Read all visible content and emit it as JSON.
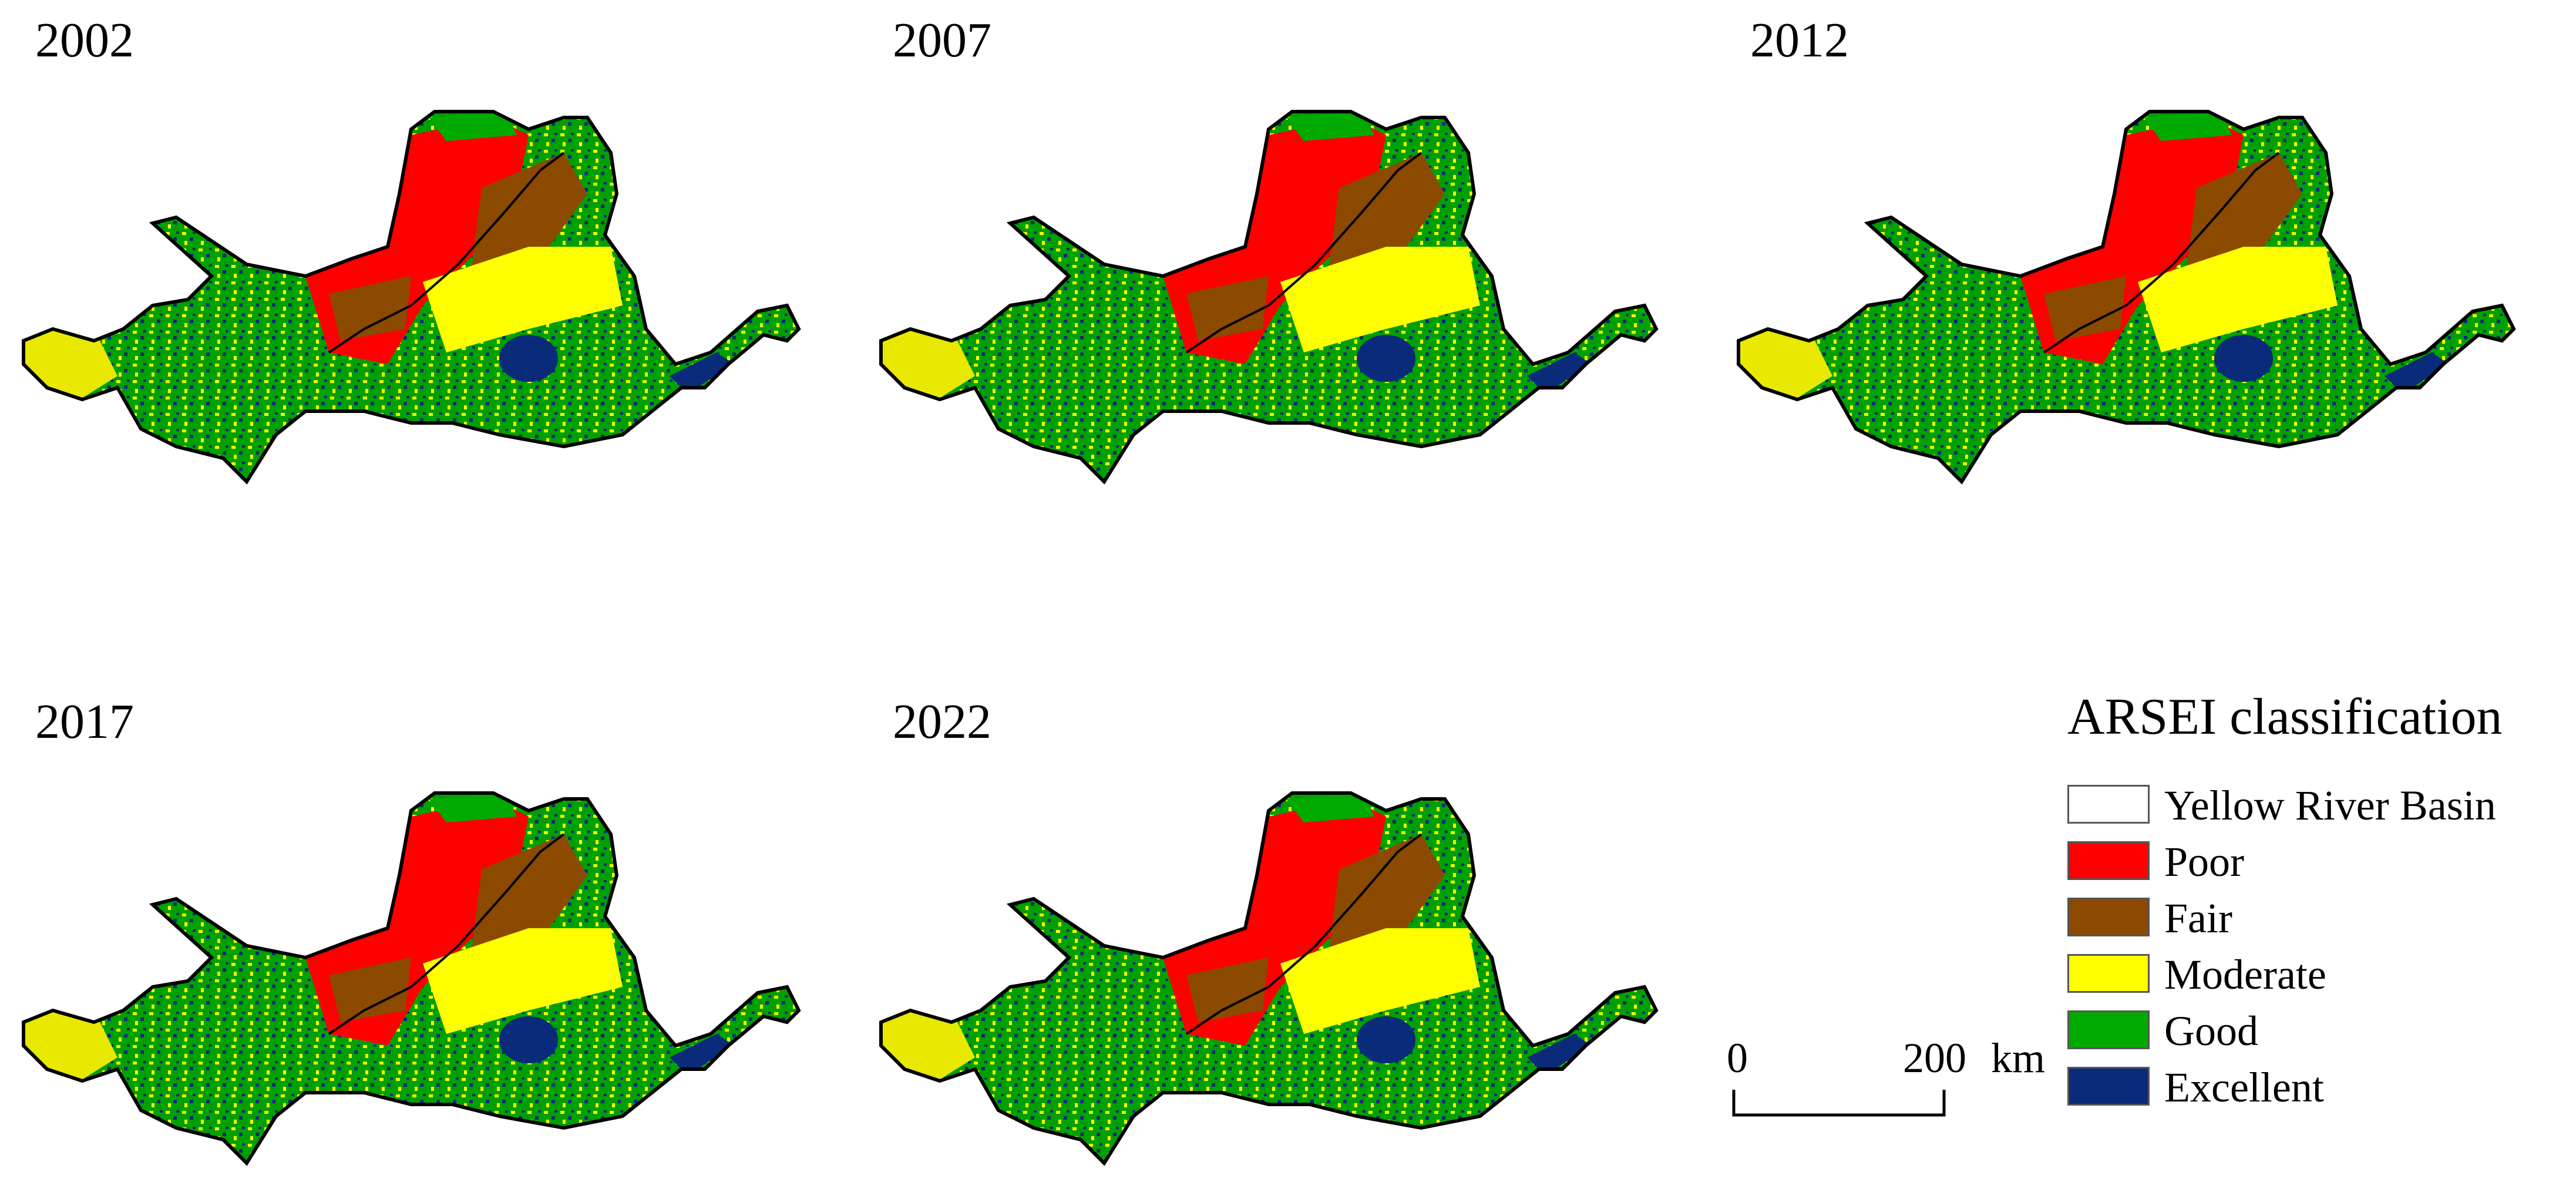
{
  "panels": [
    {
      "year": "2002"
    },
    {
      "year": "2007"
    },
    {
      "year": "2012"
    },
    {
      "year": "2017"
    },
    {
      "year": "2022"
    }
  ],
  "legend": {
    "title": "ARSEI classification",
    "items": [
      {
        "label": "Yellow River Basin",
        "color": "#ffffff"
      },
      {
        "label": "Poor",
        "color": "#ff0000"
      },
      {
        "label": "Fair",
        "color": "#8b4a00"
      },
      {
        "label": "Moderate",
        "color": "#ffff00"
      },
      {
        "label": "Good",
        "color": "#00aa00"
      },
      {
        "label": "Excellent",
        "color": "#0a2a7a"
      }
    ]
  },
  "scalebar": {
    "start": "0",
    "end": "200",
    "unit": "km"
  }
}
